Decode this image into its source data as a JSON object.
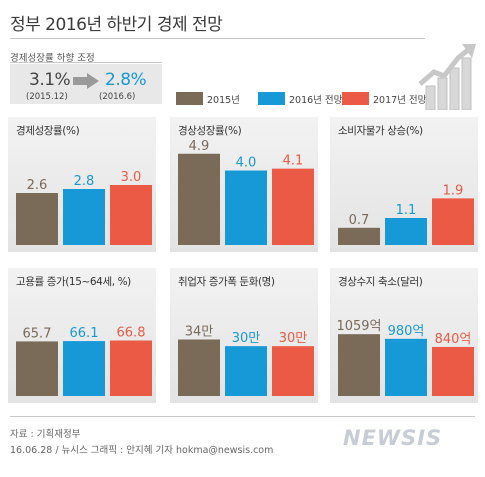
{
  "title": "정부 2016년 하반기 경제 전망",
  "gdp_adjustment": {
    "label": "경제성장률  하향 조정",
    "old_value": "3.1%",
    "old_date": "(2015.12)",
    "new_value": "2.8%",
    "new_date": "(2016.6)"
  },
  "legend": [
    {
      "label": "2015년",
      "color": "#7a6a58"
    },
    {
      "label": "2016년 전망",
      "color": "#1799d8"
    },
    {
      "label": "2017년 전망",
      "color": "#ea5a45"
    }
  ],
  "footer": {
    "source": "자료 : 기획재정부",
    "credit": "16.06.28  / 뉴시스 그래픽 : 안지혜 기자 hokma@newsis.com",
    "logo": "NEWSIS"
  },
  "chart_data": [
    {
      "type": "bar",
      "title": "경제성장률(%)",
      "categories": [
        "2015년",
        "2016년 전망",
        "2017년 전망"
      ],
      "values": [
        2.6,
        2.8,
        3.0
      ],
      "labels": [
        "2.6",
        "2.8",
        "3.0"
      ],
      "ylim": [
        0,
        5.4
      ]
    },
    {
      "type": "bar",
      "title": "경상성장률(%)",
      "categories": [
        "2015년",
        "2016년 전망",
        "2017년 전망"
      ],
      "values": [
        4.9,
        4.0,
        4.1
      ],
      "labels": [
        "4.9",
        "4.0",
        "4.1"
      ],
      "ylim": [
        0,
        5.8
      ]
    },
    {
      "type": "bar",
      "title": "소비자물가 상승(%)",
      "categories": [
        "2015년",
        "2016년 전망",
        "2017년 전망"
      ],
      "values": [
        0.7,
        1.1,
        1.9
      ],
      "labels": [
        "0.7",
        "1.1",
        "1.9"
      ],
      "ylim": [
        0,
        4.4
      ]
    },
    {
      "type": "bar",
      "title": "고용률 증가(15~64세, %)",
      "categories": [
        "2015년",
        "2016년 전망",
        "2017년 전망"
      ],
      "values": [
        65.7,
        66.1,
        66.8
      ],
      "labels": [
        "65.7",
        "66.1",
        "66.8"
      ],
      "ylim": [
        0,
        130
      ]
    },
    {
      "type": "bar",
      "title": "취업자 증가폭 둔화(명)",
      "categories": [
        "2015년",
        "2016년 전망",
        "2017년 전망"
      ],
      "values": [
        34,
        30,
        30
      ],
      "labels": [
        "34만",
        "30만",
        "30만"
      ],
      "unit": "만",
      "ylim": [
        0,
        65
      ]
    },
    {
      "type": "bar",
      "title": "경상수지 축소(달러)",
      "categories": [
        "2015년",
        "2016년 전망",
        "2017년 전망"
      ],
      "values": [
        1059,
        980,
        840
      ],
      "labels": [
        "1059억",
        "980억",
        "840억"
      ],
      "unit": "억",
      "ylim": [
        0,
        1850
      ]
    }
  ]
}
